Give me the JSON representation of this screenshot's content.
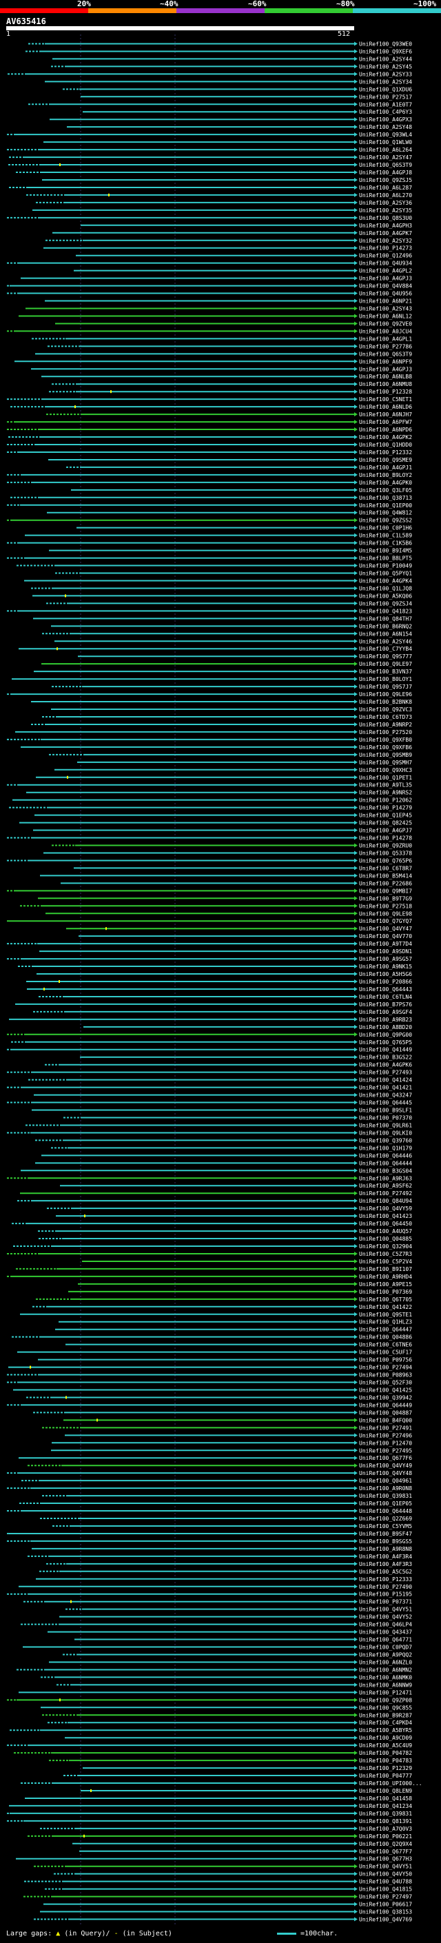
{
  "legend": {
    "ticks": [
      "20%",
      "~40%",
      "~60%",
      "~80%",
      "~100%"
    ],
    "colors": [
      "#ff0000",
      "#ff8800",
      "#9933cc",
      "#33cc33",
      "#33cccc"
    ]
  },
  "query": {
    "name": "AV635416",
    "start": "1",
    "end": "512"
  },
  "footer": {
    "prefix": "Large gaps:",
    "q_gap": "(in Query)/",
    "s_gap": "(in Subject)",
    "scale": "=100char."
  },
  "hit_colors": {
    "high": "#33cccc",
    "mid": "#33cc33",
    "gap": "#ffff00"
  },
  "hits": [
    {
      "id": "UniRef100_Q93WE0",
      "c": "high"
    },
    {
      "id": "UniRef100_Q9XEF6",
      "c": "high"
    },
    {
      "id": "UniRef100_A2SY44",
      "c": "high"
    },
    {
      "id": "UniRef100_A2SY45",
      "c": "high"
    },
    {
      "id": "UniRef100_A2SY33",
      "c": "high"
    },
    {
      "id": "UniRef100_A2SY34",
      "c": "high"
    },
    {
      "id": "UniRef100_Q1XDU6",
      "c": "high"
    },
    {
      "id": "UniRef100_P27517",
      "c": "high"
    },
    {
      "id": "UniRef100_A1E0T7",
      "c": "high"
    },
    {
      "id": "UniRef100_C4P6Y3",
      "c": "high"
    },
    {
      "id": "UniRef100_A4GPX3",
      "c": "high"
    },
    {
      "id": "UniRef100_A2SY48",
      "c": "high"
    },
    {
      "id": "UniRef100_Q93WL4",
      "c": "high"
    },
    {
      "id": "UniRef100_Q1WLW0",
      "c": "high"
    },
    {
      "id": "UniRef100_A6L264",
      "c": "high"
    },
    {
      "id": "UniRef100_A2SY47",
      "c": "high"
    },
    {
      "id": "UniRef100_Q6S3T9",
      "c": "high"
    },
    {
      "id": "UniRef100_A4GPJ8",
      "c": "high"
    },
    {
      "id": "UniRef100_Q9ZSJ5",
      "c": "high"
    },
    {
      "id": "UniRef100_A6L287",
      "c": "high"
    },
    {
      "id": "UniRef100_A6L270",
      "c": "high"
    },
    {
      "id": "UniRef100_A2SY36",
      "c": "high"
    },
    {
      "id": "UniRef100_A2SY35",
      "c": "high"
    },
    {
      "id": "UniRef100_Q8S3U0",
      "c": "high"
    },
    {
      "id": "UniRef100_A4GPH3",
      "c": "high"
    },
    {
      "id": "UniRef100_A4GPK7",
      "c": "high"
    },
    {
      "id": "UniRef100_A2SY32",
      "c": "high"
    },
    {
      "id": "UniRef100_P14273",
      "c": "high"
    },
    {
      "id": "UniRef100_Q1Z496",
      "c": "high"
    },
    {
      "id": "UniRef100_Q4U934",
      "c": "high"
    },
    {
      "id": "UniRef100_A4GPL2",
      "c": "high"
    },
    {
      "id": "UniRef100_A4GPJ3",
      "c": "high"
    },
    {
      "id": "UniRef100_Q4V884",
      "c": "high"
    },
    {
      "id": "UniRef100_Q4U956",
      "c": "high"
    },
    {
      "id": "UniRef100_A6NP21",
      "c": "high"
    },
    {
      "id": "UniRef100_A2SY43",
      "c": "mid"
    },
    {
      "id": "UniRef100_A6NL12",
      "c": "mid"
    },
    {
      "id": "UniRef100_Q9ZVE0",
      "c": "mid"
    },
    {
      "id": "UniRef100_A0JCU4",
      "c": "mid"
    },
    {
      "id": "UniRef100_A4GPL1",
      "c": "high"
    },
    {
      "id": "UniRef100_P27786",
      "c": "high"
    },
    {
      "id": "UniRef100_Q6S3T9",
      "c": "high"
    },
    {
      "id": "UniRef100_A6NPF9",
      "c": "high"
    },
    {
      "id": "UniRef100_A4GPJ3",
      "c": "high"
    },
    {
      "id": "UniRef100_A6NLB8",
      "c": "high"
    },
    {
      "id": "UniRef100_A6NMU8",
      "c": "high"
    },
    {
      "id": "UniRef100_P12328",
      "c": "high"
    },
    {
      "id": "UniRef100_C5NET1",
      "c": "high"
    },
    {
      "id": "UniRef100_A6NLD6",
      "c": "high"
    },
    {
      "id": "UniRef100_A6NJH7",
      "c": "mid"
    },
    {
      "id": "UniRef100_A6PFW7",
      "c": "mid"
    },
    {
      "id": "UniRef100_A6NPD6",
      "c": "mid"
    },
    {
      "id": "UniRef100_A4GPK2",
      "c": "high"
    },
    {
      "id": "UniRef100_Q1HDD0",
      "c": "high"
    },
    {
      "id": "UniRef100_P12332",
      "c": "high"
    },
    {
      "id": "UniRef100_Q9SME9",
      "c": "high"
    },
    {
      "id": "UniRef100_A4GPJ1",
      "c": "high"
    },
    {
      "id": "UniRef100_B9LOY2",
      "c": "high"
    },
    {
      "id": "UniRef100_A4GPK0",
      "c": "high"
    },
    {
      "id": "UniRef100_Q3LF05",
      "c": "high"
    },
    {
      "id": "UniRef100_Q38713",
      "c": "high"
    },
    {
      "id": "UniRef100_Q1EP00",
      "c": "high"
    },
    {
      "id": "UniRef100_Q4W812",
      "c": "high"
    },
    {
      "id": "UniRef100_Q9ZSS2",
      "c": "mid"
    },
    {
      "id": "UniRef100_C0P1H6",
      "c": "high"
    },
    {
      "id": "UniRef100_C1L589",
      "c": "high"
    },
    {
      "id": "UniRef100_C1K5B6",
      "c": "high"
    },
    {
      "id": "UniRef100_B9I4M5",
      "c": "high"
    },
    {
      "id": "UniRef100_B8LPT5",
      "c": "high"
    },
    {
      "id": "UniRef100_P10049",
      "c": "high"
    },
    {
      "id": "UniRef100_Q5PYQ1",
      "c": "high"
    },
    {
      "id": "UniRef100_A4GPK4",
      "c": "high"
    },
    {
      "id": "UniRef100_Q1LJQ8",
      "c": "high"
    },
    {
      "id": "UniRef100_A5KQ06",
      "c": "high"
    },
    {
      "id": "UniRef100_Q9ZSJ4",
      "c": "high"
    },
    {
      "id": "UniRef100_Q41823",
      "c": "high"
    },
    {
      "id": "UniRef100_Q84TH7",
      "c": "high"
    },
    {
      "id": "UniRef100_B6RNQ2",
      "c": "high"
    },
    {
      "id": "UniRef100_A6N154",
      "c": "high"
    },
    {
      "id": "UniRef100_A2SY46",
      "c": "high"
    },
    {
      "id": "UniRef100_C7YYB4",
      "c": "high"
    },
    {
      "id": "UniRef100_Q9S777",
      "c": "high"
    },
    {
      "id": "UniRef100_Q9LE97",
      "c": "mid"
    },
    {
      "id": "UniRef100_B3VN37",
      "c": "high"
    },
    {
      "id": "UniRef100_B0LOY1",
      "c": "high"
    },
    {
      "id": "UniRef100_Q9S7J7",
      "c": "high"
    },
    {
      "id": "UniRef100_Q9LE96",
      "c": "high"
    },
    {
      "id": "UniRef100_B2BNK8",
      "c": "high"
    },
    {
      "id": "UniRef100_Q9ZVC3",
      "c": "high"
    },
    {
      "id": "UniRef100_C6TD73",
      "c": "high"
    },
    {
      "id": "UniRef100_A9NRP2",
      "c": "high"
    },
    {
      "id": "UniRef100_P27520",
      "c": "high"
    },
    {
      "id": "UniRef100_Q9XFB0",
      "c": "high"
    },
    {
      "id": "UniRef100_Q9XFB6",
      "c": "high"
    },
    {
      "id": "UniRef100_Q9SMB9",
      "c": "high"
    },
    {
      "id": "UniRef100_Q9SMH7",
      "c": "high"
    },
    {
      "id": "UniRef100_Q9XHC3",
      "c": "high"
    },
    {
      "id": "UniRef100_Q1PET1",
      "c": "high"
    },
    {
      "id": "UniRef100_A9TL35",
      "c": "high"
    },
    {
      "id": "UniRef100_A9NRS2",
      "c": "high"
    },
    {
      "id": "UniRef100_P12062",
      "c": "high"
    },
    {
      "id": "UniRef100_P14279",
      "c": "high"
    },
    {
      "id": "UniRef100_Q1EP45",
      "c": "high"
    },
    {
      "id": "UniRef100_Q82425",
      "c": "high"
    },
    {
      "id": "UniRef100_A4GPJ7",
      "c": "high"
    },
    {
      "id": "UniRef100_P14278",
      "c": "high"
    },
    {
      "id": "UniRef100_Q9ZRU0",
      "c": "mid"
    },
    {
      "id": "UniRef100_Q53378",
      "c": "high"
    },
    {
      "id": "UniRef100_Q765P6",
      "c": "high"
    },
    {
      "id": "UniRef100_C6T8R7",
      "c": "high"
    },
    {
      "id": "UniRef100_B5M414",
      "c": "high"
    },
    {
      "id": "UniRef100_P22686",
      "c": "high"
    },
    {
      "id": "UniRef100_Q9MBI7",
      "c": "mid"
    },
    {
      "id": "UniRef100_B9T7G9",
      "c": "mid"
    },
    {
      "id": "UniRef100_P27518",
      "c": "mid"
    },
    {
      "id": "UniRef100_Q9LE98",
      "c": "mid"
    },
    {
      "id": "UniRef100_Q7GYQ7",
      "c": "mid"
    },
    {
      "id": "UniRef100_Q4VY47",
      "c": "mid"
    },
    {
      "id": "UniRef100_Q4V770",
      "c": "high"
    },
    {
      "id": "UniRef100_A9T7D4",
      "c": "high"
    },
    {
      "id": "UniRef100_A9SDN1",
      "c": "high"
    },
    {
      "id": "UniRef100_A9SG57",
      "c": "high"
    },
    {
      "id": "UniRef100_A9NK15",
      "c": "high"
    },
    {
      "id": "UniRef100_A5H5G6",
      "c": "high"
    },
    {
      "id": "UniRef100_P20866",
      "c": "high"
    },
    {
      "id": "UniRef100_Q64443",
      "c": "high"
    },
    {
      "id": "UniRef100_C6TLN4",
      "c": "high"
    },
    {
      "id": "UniRef100_B7PS76",
      "c": "high"
    },
    {
      "id": "UniRef100_A9SGF4",
      "c": "high"
    },
    {
      "id": "UniRef100_A9RB23",
      "c": "high"
    },
    {
      "id": "UniRef100_A8BD20",
      "c": "high"
    },
    {
      "id": "UniRef100_Q9PG00",
      "c": "mid"
    },
    {
      "id": "UniRef100_Q765P5",
      "c": "high"
    },
    {
      "id": "UniRef100_Q41449",
      "c": "high"
    },
    {
      "id": "UniRef100_B3GS22",
      "c": "high"
    },
    {
      "id": "UniRef100_A4GPK6",
      "c": "high"
    },
    {
      "id": "UniRef100_P27493",
      "c": "high"
    },
    {
      "id": "UniRef100_Q41424",
      "c": "high"
    },
    {
      "id": "UniRef100_Q41421",
      "c": "high"
    },
    {
      "id": "UniRef100_Q43247",
      "c": "high"
    },
    {
      "id": "UniRef100_Q64445",
      "c": "high"
    },
    {
      "id": "UniRef100_B9SLF1",
      "c": "high"
    },
    {
      "id": "UniRef100_P07370",
      "c": "high"
    },
    {
      "id": "UniRef100_Q9LR61",
      "c": "high"
    },
    {
      "id": "UniRef100_Q9LKI0",
      "c": "high"
    },
    {
      "id": "UniRef100_Q39760",
      "c": "high"
    },
    {
      "id": "UniRef100_Q1H179",
      "c": "high"
    },
    {
      "id": "UniRef100_Q64446",
      "c": "high"
    },
    {
      "id": "UniRef100_Q64444",
      "c": "high"
    },
    {
      "id": "UniRef100_B3GS04",
      "c": "high"
    },
    {
      "id": "UniRef100_A9RJ63",
      "c": "mid"
    },
    {
      "id": "UniRef100_A9SF62",
      "c": "high"
    },
    {
      "id": "UniRef100_P27492",
      "c": "mid"
    },
    {
      "id": "UniRef100_Q84U94",
      "c": "high"
    },
    {
      "id": "UniRef100_Q4VY59",
      "c": "high"
    },
    {
      "id": "UniRef100_Q41423",
      "c": "high"
    },
    {
      "id": "UniRef100_Q64450",
      "c": "high"
    },
    {
      "id": "UniRef100_A4UQ57",
      "c": "high"
    },
    {
      "id": "UniRef100_Q04885",
      "c": "high"
    },
    {
      "id": "UniRef100_Q32904",
      "c": "high"
    },
    {
      "id": "UniRef100_C5Z7R3",
      "c": "mid"
    },
    {
      "id": "UniRef100_C5P2V4",
      "c": "mid"
    },
    {
      "id": "UniRef100_B9I107",
      "c": "mid"
    },
    {
      "id": "UniRef100_A9RHD4",
      "c": "mid"
    },
    {
      "id": "UniRef100_A9PE15",
      "c": "mid"
    },
    {
      "id": "UniRef100_P07369",
      "c": "mid"
    },
    {
      "id": "UniRef100_Q6T705",
      "c": "mid"
    },
    {
      "id": "UniRef100_Q41422",
      "c": "high"
    },
    {
      "id": "UniRef100_Q9STE1",
      "c": "high"
    },
    {
      "id": "UniRef100_Q1HLZ3",
      "c": "high"
    },
    {
      "id": "UniRef100_Q64447",
      "c": "high"
    },
    {
      "id": "UniRef100_Q04886",
      "c": "high"
    },
    {
      "id": "UniRef100_C6TNE6",
      "c": "high"
    },
    {
      "id": "UniRef100_C5UF17",
      "c": "high"
    },
    {
      "id": "UniRef100_P09756",
      "c": "high"
    },
    {
      "id": "UniRef100_P27494",
      "c": "high"
    },
    {
      "id": "UniRef100_P08963",
      "c": "high"
    },
    {
      "id": "UniRef100_Q52F30",
      "c": "high"
    },
    {
      "id": "UniRef100_Q41425",
      "c": "high"
    },
    {
      "id": "UniRef100_Q39942",
      "c": "high"
    },
    {
      "id": "UniRef100_Q64449",
      "c": "high"
    },
    {
      "id": "UniRef100_Q04887",
      "c": "high"
    },
    {
      "id": "UniRef100_B4FQ00",
      "c": "mid"
    },
    {
      "id": "UniRef100_P27491",
      "c": "mid"
    },
    {
      "id": "UniRef100_P27496",
      "c": "high"
    },
    {
      "id": "UniRef100_P12470",
      "c": "high"
    },
    {
      "id": "UniRef100_P27495",
      "c": "high"
    },
    {
      "id": "UniRef100_Q677F6",
      "c": "high"
    },
    {
      "id": "UniRef100_Q4VY49",
      "c": "mid"
    },
    {
      "id": "UniRef100_Q4VY48",
      "c": "high"
    },
    {
      "id": "UniRef100_Q04961",
      "c": "high"
    },
    {
      "id": "UniRef100_A9R0N8",
      "c": "high"
    },
    {
      "id": "UniRef100_Q39831",
      "c": "high"
    },
    {
      "id": "UniRef100_Q1EP05",
      "c": "high"
    },
    {
      "id": "UniRef100_Q64448",
      "c": "high"
    },
    {
      "id": "UniRef100_Q2Z669",
      "c": "high"
    },
    {
      "id": "UniRef100_C5YVM5",
      "c": "high"
    },
    {
      "id": "UniRef100_B9SF47",
      "c": "high"
    },
    {
      "id": "UniRef100_B9SGS5",
      "c": "high"
    },
    {
      "id": "UniRef100_A9R8N8",
      "c": "high"
    },
    {
      "id": "UniRef100_A4F3R4",
      "c": "high"
    },
    {
      "id": "UniRef100_A4F3R3",
      "c": "high"
    },
    {
      "id": "UniRef100_A5C5G2",
      "c": "high"
    },
    {
      "id": "UniRef100_P12333",
      "c": "high"
    },
    {
      "id": "UniRef100_P27490",
      "c": "high"
    },
    {
      "id": "UniRef100_P15195",
      "c": "high"
    },
    {
      "id": "UniRef100_P07371",
      "c": "high"
    },
    {
      "id": "UniRef100_Q4VY51",
      "c": "high"
    },
    {
      "id": "UniRef100_Q4VY52",
      "c": "high"
    },
    {
      "id": "UniRef100_Q46LP4",
      "c": "high"
    },
    {
      "id": "UniRef100_Q43437",
      "c": "high"
    },
    {
      "id": "UniRef100_Q64771",
      "c": "high"
    },
    {
      "id": "UniRef100_C0PQD7",
      "c": "high"
    },
    {
      "id": "UniRef100_A9PQQ2",
      "c": "high"
    },
    {
      "id": "UniRef100_A6NZL0",
      "c": "high"
    },
    {
      "id": "UniRef100_A6NMN2",
      "c": "high"
    },
    {
      "id": "UniRef100_A6NMK0",
      "c": "high"
    },
    {
      "id": "UniRef100_A6NNW9",
      "c": "high"
    },
    {
      "id": "UniRef100_P12471",
      "c": "high"
    },
    {
      "id": "UniRef100_Q9ZP08",
      "c": "mid"
    },
    {
      "id": "UniRef100_Q9C855",
      "c": "high"
    },
    {
      "id": "UniRef100_B9R287",
      "c": "mid"
    },
    {
      "id": "UniRef100_C4PKD4",
      "c": "high"
    },
    {
      "id": "UniRef100_A5BYR5",
      "c": "high"
    },
    {
      "id": "UniRef100_A9CD09",
      "c": "high"
    },
    {
      "id": "UniRef100_A5C4U9",
      "c": "high"
    },
    {
      "id": "UniRef100_P04782",
      "c": "mid"
    },
    {
      "id": "UniRef100_P04783",
      "c": "mid"
    },
    {
      "id": "UniRef100_P12329",
      "c": "high"
    },
    {
      "id": "UniRef100_P04777",
      "c": "high"
    },
    {
      "id": "UniRef100_UPI000...",
      "c": "high"
    },
    {
      "id": "UniRef100_Q8LEN9",
      "c": "high"
    },
    {
      "id": "UniRef100_Q41458",
      "c": "high"
    },
    {
      "id": "UniRef100_Q41234",
      "c": "high"
    },
    {
      "id": "UniRef100_Q39831",
      "c": "high"
    },
    {
      "id": "UniRef100_Q81391",
      "c": "high"
    },
    {
      "id": "UniRef100_A7Q0V3",
      "c": "high"
    },
    {
      "id": "UniRef100_P06221",
      "c": "mid"
    },
    {
      "id": "UniRef100_Q2Q9X4",
      "c": "high"
    },
    {
      "id": "UniRef100_Q677F7",
      "c": "high"
    },
    {
      "id": "UniRef100_Q677H3",
      "c": "high"
    },
    {
      "id": "UniRef100_Q4VY51",
      "c": "mid"
    },
    {
      "id": "UniRef100_Q4VY50",
      "c": "high"
    },
    {
      "id": "UniRef100_Q4U788",
      "c": "high"
    },
    {
      "id": "UniRef100_Q41815",
      "c": "high"
    },
    {
      "id": "UniRef100_P27497",
      "c": "mid"
    },
    {
      "id": "UniRef100_P06617",
      "c": "high"
    },
    {
      "id": "UniRef100_Q38153",
      "c": "high"
    },
    {
      "id": "UniRef100_Q4V769",
      "c": "high"
    }
  ]
}
